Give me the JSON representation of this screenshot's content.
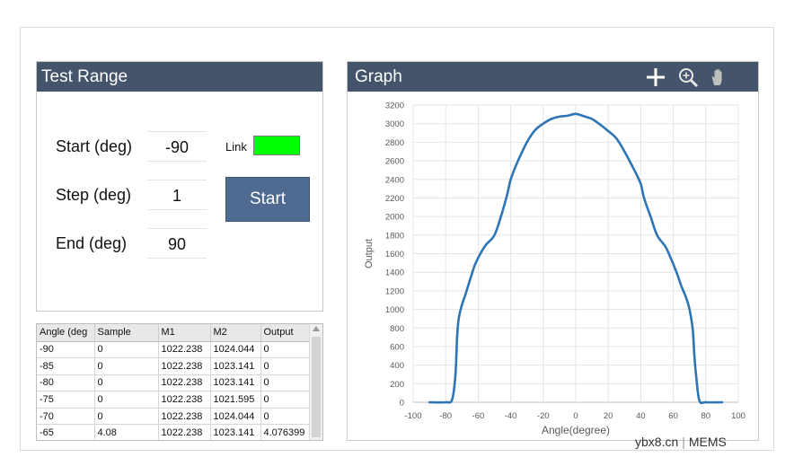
{
  "test_range": {
    "title": "Test Range",
    "start_label": "Start (deg)",
    "start_value": "-90",
    "step_label": "Step (deg)",
    "step_value": "1",
    "end_label": "End (deg)",
    "end_value": "90",
    "link_label": "Link",
    "link_color": "#00ff00",
    "start_button": "Start"
  },
  "table": {
    "headers": [
      "Angle (deg",
      "Sample",
      "M1",
      "M2",
      "Output"
    ],
    "rows": [
      [
        "-90",
        "0",
        "1022.238",
        "1024.044",
        "0"
      ],
      [
        "-85",
        "0",
        "1022.238",
        "1023.141",
        "0"
      ],
      [
        "-80",
        "0",
        "1022.238",
        "1023.141",
        "0"
      ],
      [
        "-75",
        "0",
        "1022.238",
        "1021.595",
        "0"
      ],
      [
        "-70",
        "0",
        "1022.238",
        "1024.044",
        "0"
      ],
      [
        "-65",
        "4.08",
        "1022.238",
        "1023.141",
        "4.076399"
      ]
    ]
  },
  "graph": {
    "title": "Graph",
    "tools": [
      "crosshair-icon",
      "zoom-icon",
      "pan-hand-icon"
    ]
  },
  "chart_data": {
    "type": "line",
    "xlabel": "Angle(degree)",
    "ylabel": "Output",
    "xlim": [
      -100,
      100
    ],
    "ylim": [
      0,
      3200
    ],
    "xticks": [
      -100,
      -80,
      -60,
      -40,
      -20,
      0,
      20,
      40,
      60,
      80,
      100
    ],
    "yticks": [
      0,
      200,
      400,
      600,
      800,
      1000,
      1200,
      1400,
      1600,
      1800,
      2000,
      2200,
      2400,
      2600,
      2800,
      3000,
      3200
    ],
    "grid": true,
    "line_color": "#2e75b6",
    "series": [
      {
        "x": [
          -90,
          -80,
          -76,
          -74,
          -73,
          -72,
          -70,
          -68,
          -65,
          -62,
          -58,
          -55,
          -50,
          -46,
          -42,
          -40,
          -36,
          -30,
          -25,
          -20,
          -15,
          -10,
          -5,
          0,
          5,
          10,
          15,
          20,
          25,
          30,
          36,
          40,
          42,
          46,
          50,
          55,
          58,
          62,
          65,
          68,
          70,
          72,
          73,
          74,
          76,
          80,
          90
        ],
        "y": [
          0,
          0,
          30,
          300,
          700,
          900,
          1050,
          1150,
          1320,
          1480,
          1620,
          1700,
          1800,
          2000,
          2250,
          2400,
          2580,
          2800,
          2930,
          3000,
          3050,
          3075,
          3085,
          3105,
          3080,
          3050,
          2990,
          2920,
          2840,
          2700,
          2500,
          2350,
          2200,
          2000,
          1800,
          1680,
          1570,
          1400,
          1250,
          1120,
          1000,
          780,
          500,
          300,
          20,
          0,
          0
        ]
      }
    ]
  },
  "watermark": {
    "site": "ybx8.cn",
    "brand": "MEMS"
  }
}
